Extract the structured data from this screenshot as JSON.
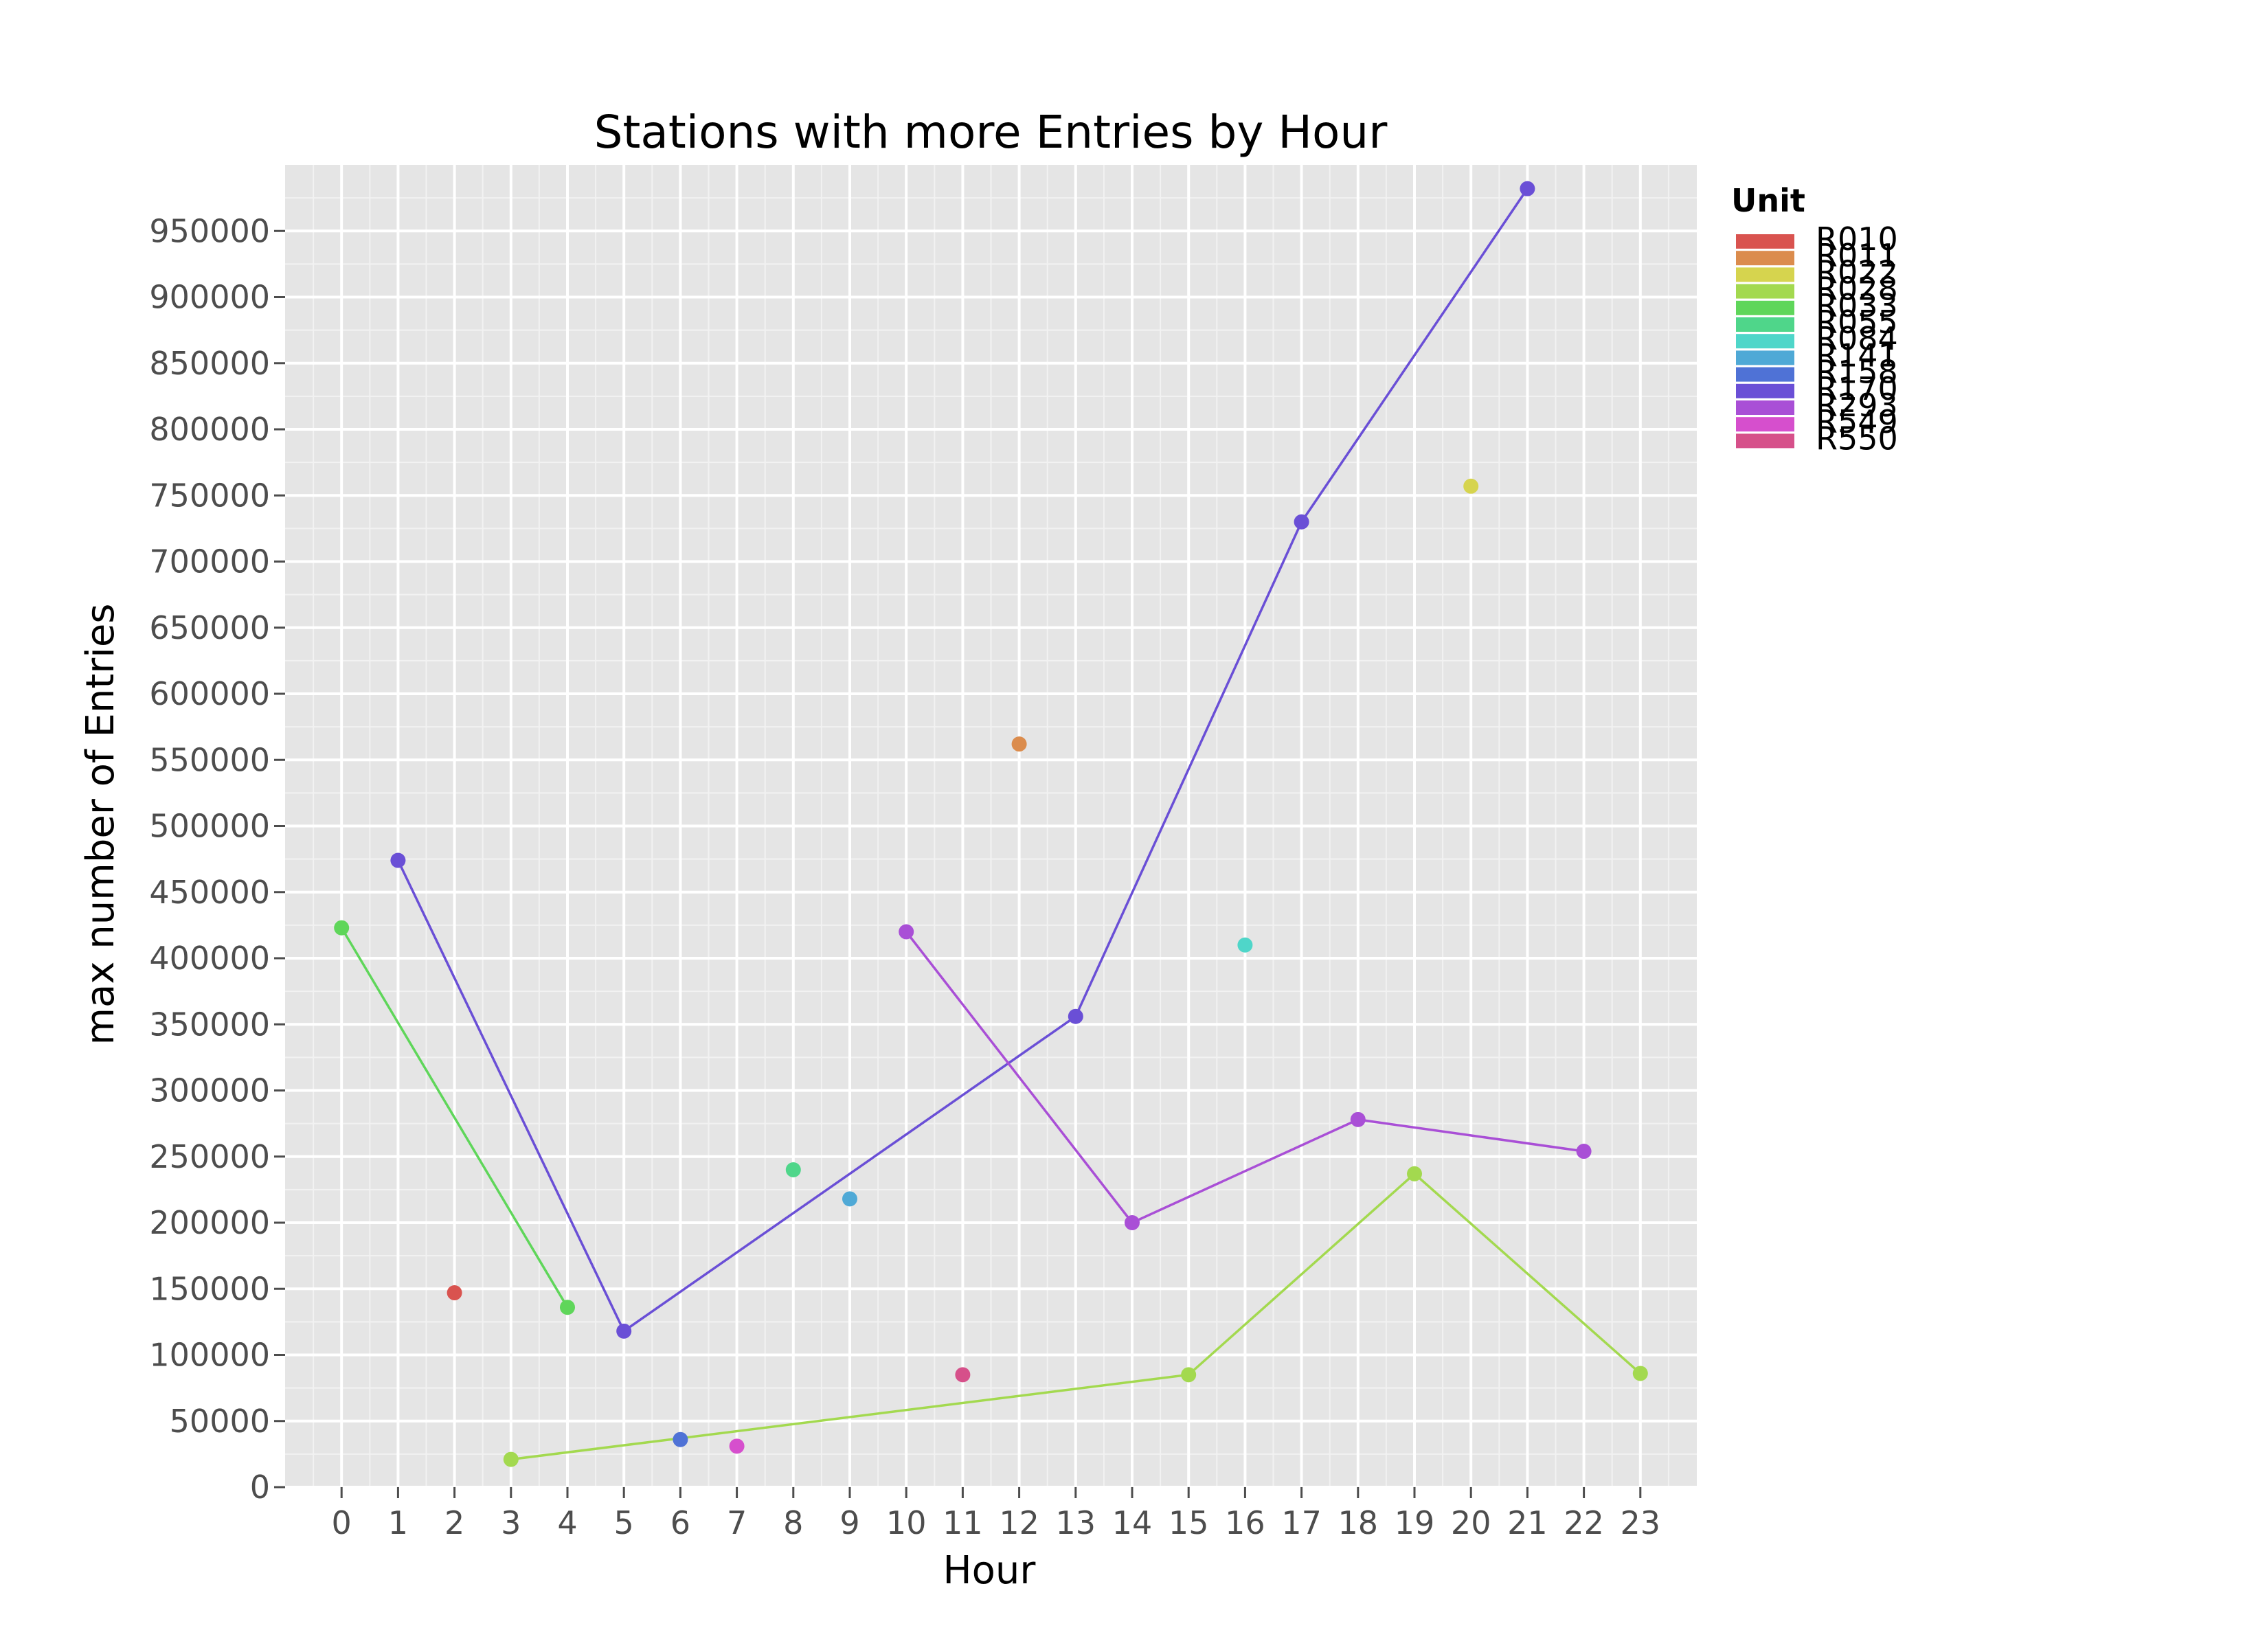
{
  "chart_data": {
    "type": "line",
    "title": "Stations with more Entries by Hour",
    "xlabel": "Hour",
    "ylabel": "max number of Entries",
    "xlim": [
      -1,
      24
    ],
    "ylim": [
      0,
      1000000
    ],
    "x_ticks": [
      0,
      1,
      2,
      3,
      4,
      5,
      6,
      7,
      8,
      9,
      10,
      11,
      12,
      13,
      14,
      15,
      16,
      17,
      18,
      19,
      20,
      21,
      22,
      23
    ],
    "y_ticks": [
      0,
      50000,
      100000,
      150000,
      200000,
      250000,
      300000,
      350000,
      400000,
      450000,
      500000,
      550000,
      600000,
      650000,
      700000,
      750000,
      800000,
      850000,
      900000,
      950000
    ],
    "grid": true,
    "legend_position": "right",
    "legend_title": "Unit",
    "series": [
      {
        "name": "R010",
        "color": "#d9534f",
        "points": [
          [
            2,
            147000
          ]
        ]
      },
      {
        "name": "R011",
        "color": "#db8c4d",
        "points": [
          [
            12,
            562000
          ]
        ]
      },
      {
        "name": "R022",
        "color": "#d6d44e",
        "points": [
          [
            20,
            757000
          ]
        ]
      },
      {
        "name": "R028",
        "color": "#a3d94f",
        "points": [
          [
            3,
            21000
          ],
          [
            15,
            85000
          ],
          [
            19,
            237000
          ],
          [
            23,
            86000
          ]
        ]
      },
      {
        "name": "R033",
        "color": "#5fd65a",
        "points": [
          [
            0,
            423000
          ],
          [
            4,
            136000
          ]
        ]
      },
      {
        "name": "R055",
        "color": "#4fd68a",
        "points": [
          [
            8,
            240000
          ]
        ]
      },
      {
        "name": "R084",
        "color": "#4fd6c9",
        "points": [
          [
            16,
            410000
          ]
        ]
      },
      {
        "name": "R141",
        "color": "#4fa9d6",
        "points": [
          [
            9,
            218000
          ]
        ]
      },
      {
        "name": "R158",
        "color": "#4f72d6",
        "points": [
          [
            6,
            36000
          ]
        ]
      },
      {
        "name": "R170",
        "color": "#6a4fd6",
        "points": [
          [
            1,
            474000
          ],
          [
            5,
            118000
          ],
          [
            13,
            356000
          ],
          [
            17,
            730000
          ],
          [
            21,
            982000
          ]
        ]
      },
      {
        "name": "R293",
        "color": "#a94fd6",
        "points": [
          [
            10,
            420000
          ],
          [
            14,
            200000
          ],
          [
            18,
            278000
          ],
          [
            22,
            254000
          ]
        ]
      },
      {
        "name": "R549",
        "color": "#d64fcd",
        "points": [
          [
            7,
            31000
          ]
        ]
      },
      {
        "name": "R550",
        "color": "#d6508a",
        "points": [
          [
            11,
            85000
          ]
        ]
      }
    ]
  }
}
